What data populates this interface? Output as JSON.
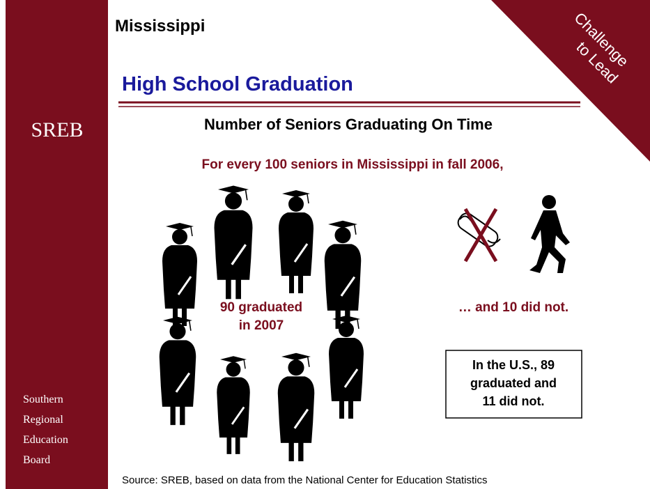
{
  "state": "Mississippi",
  "title": "High School Graduation",
  "logo": "SREB",
  "banner": {
    "lines": [
      "Challenge",
      "to Lead"
    ]
  },
  "heading": "Number of Seniors Graduating On Time",
  "subheading": "For every 100 seniors in Mississippi in fall 2006,",
  "graduated": {
    "lines": [
      "90 graduated",
      "in 2007"
    ]
  },
  "not_graduated": "… and 10 did not.",
  "us_box": {
    "lines": [
      "In the U.S., 89",
      "graduated and",
      "11 did not."
    ]
  },
  "organization": {
    "lines": [
      "Southern",
      "Regional",
      "Education",
      "Board"
    ]
  },
  "source": "Source: SREB, based on data from the National Center for Education Statistics"
}
